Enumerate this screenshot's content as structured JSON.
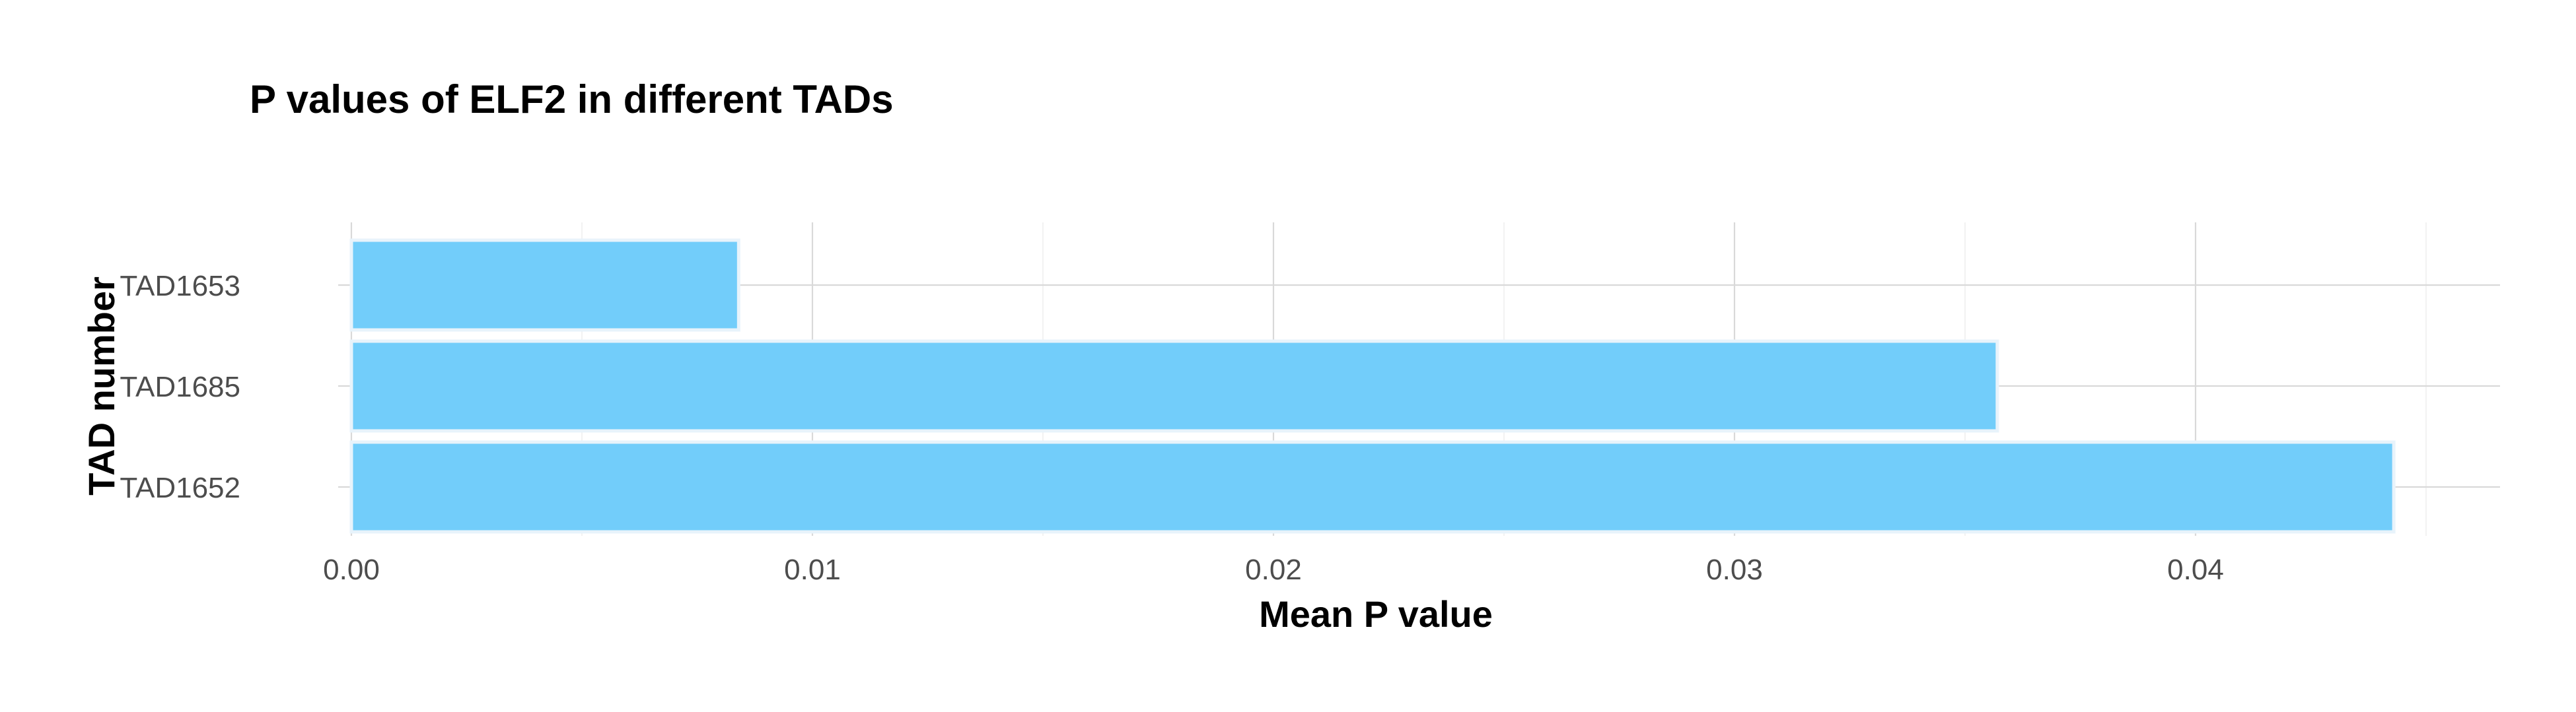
{
  "chart_data": {
    "type": "bar",
    "orientation": "horizontal",
    "title": "P values of ELF2 in different TADs",
    "xlabel": "Mean P value",
    "ylabel": "TAD number",
    "categories": [
      "TAD1653",
      "TAD1685",
      "TAD1652"
    ],
    "values": [
      0.0084,
      0.0357,
      0.0443
    ],
    "xlim": [
      0,
      0.0465
    ],
    "xticks": [
      0.0,
      0.01,
      0.02,
      0.03,
      0.04
    ],
    "xtick_labels": [
      "0.00",
      "0.01",
      "0.02",
      "0.03",
      "0.04"
    ],
    "grid": true,
    "legend": "none",
    "bar_color": "#72cdfa"
  }
}
